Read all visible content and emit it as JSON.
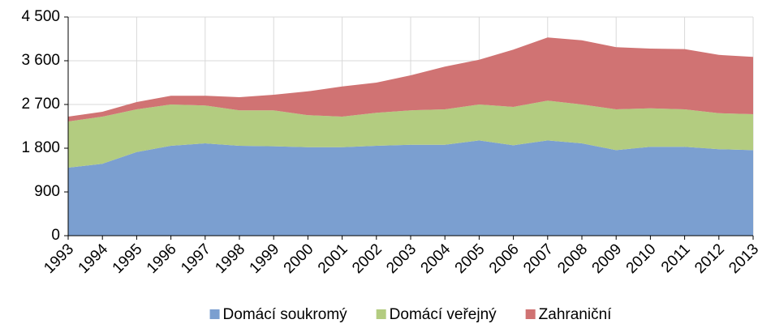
{
  "chart_data": {
    "type": "stacked_area",
    "categories": [
      "1993",
      "1994",
      "1995",
      "1996",
      "1997",
      "1998",
      "1999",
      "2000",
      "2001",
      "2002",
      "2003",
      "2004",
      "2005",
      "2006",
      "2007",
      "2008",
      "2009",
      "2010",
      "2011",
      "2012",
      "2013"
    ],
    "series": [
      {
        "name": "Domácí soukromý",
        "color": "#7b9fd0",
        "values": [
          1400,
          1480,
          1720,
          1850,
          1900,
          1850,
          1840,
          1820,
          1820,
          1850,
          1870,
          1870,
          1960,
          1860,
          1960,
          1900,
          1760,
          1830,
          1830,
          1780,
          1760
        ]
      },
      {
        "name": "Domácí veřejný",
        "color": "#b3cc80",
        "values": [
          950,
          970,
          880,
          850,
          780,
          730,
          740,
          660,
          630,
          680,
          710,
          730,
          740,
          790,
          820,
          800,
          840,
          790,
          770,
          740,
          740
        ]
      },
      {
        "name": "Zahraniční",
        "color": "#d07373",
        "values": [
          100,
          100,
          150,
          180,
          200,
          270,
          320,
          490,
          620,
          620,
          720,
          880,
          920,
          1180,
          1300,
          1320,
          1280,
          1230,
          1240,
          1200,
          1180
        ]
      }
    ],
    "ylim": [
      0,
      4500
    ],
    "yticks": [
      0,
      900,
      {
        "value": 1800,
        "label": "1 800"
      },
      {
        "value": 2700,
        "label": "2 700"
      },
      {
        "value": 3600,
        "label": "3 600"
      },
      {
        "value": 4500,
        "label": "4 500"
      }
    ],
    "grid": true,
    "legend": "bottom"
  }
}
